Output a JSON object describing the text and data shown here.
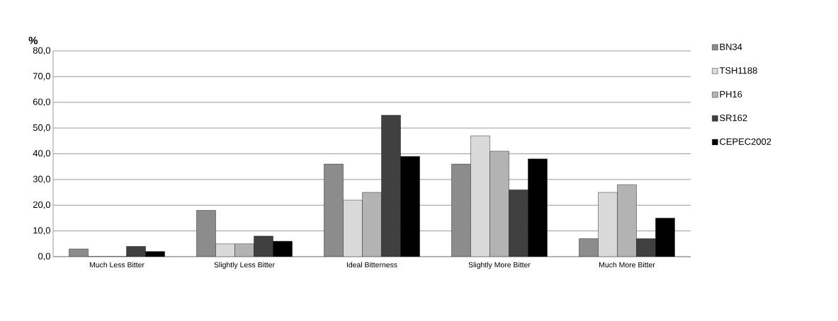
{
  "chart_data": {
    "type": "bar",
    "ylabel": "%",
    "categories": [
      "Much Less Bitter",
      "Slightly Less Bitter",
      "Ideal Bitterness",
      "Slightly More Bitter",
      "Much More Bitter"
    ],
    "series": [
      {
        "name": "BN34",
        "color": "#8c8c8c",
        "values": [
          3,
          18,
          36,
          36,
          7
        ]
      },
      {
        "name": "TSH1188",
        "color": "#d9d9d9",
        "values": [
          0,
          5,
          22,
          47,
          25
        ]
      },
      {
        "name": "PH16",
        "color": "#b3b3b3",
        "values": [
          0,
          5,
          25,
          41,
          28
        ]
      },
      {
        "name": "SR162",
        "color": "#404040",
        "values": [
          4,
          8,
          55,
          26,
          7
        ]
      },
      {
        "name": "CEPEC2002",
        "color": "#000000",
        "values": [
          2,
          6,
          39,
          38,
          15
        ]
      }
    ],
    "ylim": [
      0,
      80
    ],
    "yticks": [
      {
        "value": 0,
        "label": "0,0"
      },
      {
        "value": 10,
        "label": "10,0"
      },
      {
        "value": 20,
        "label": "20,0"
      },
      {
        "value": 30,
        "label": "30,0"
      },
      {
        "value": 40,
        "label": "40,0"
      },
      {
        "value": 50,
        "label": "50,0"
      },
      {
        "value": 60,
        "label": "60,0"
      },
      {
        "value": 70,
        "label": "70,0"
      },
      {
        "value": 80,
        "label": "80,0"
      }
    ],
    "grid": "y",
    "legend": "right"
  }
}
